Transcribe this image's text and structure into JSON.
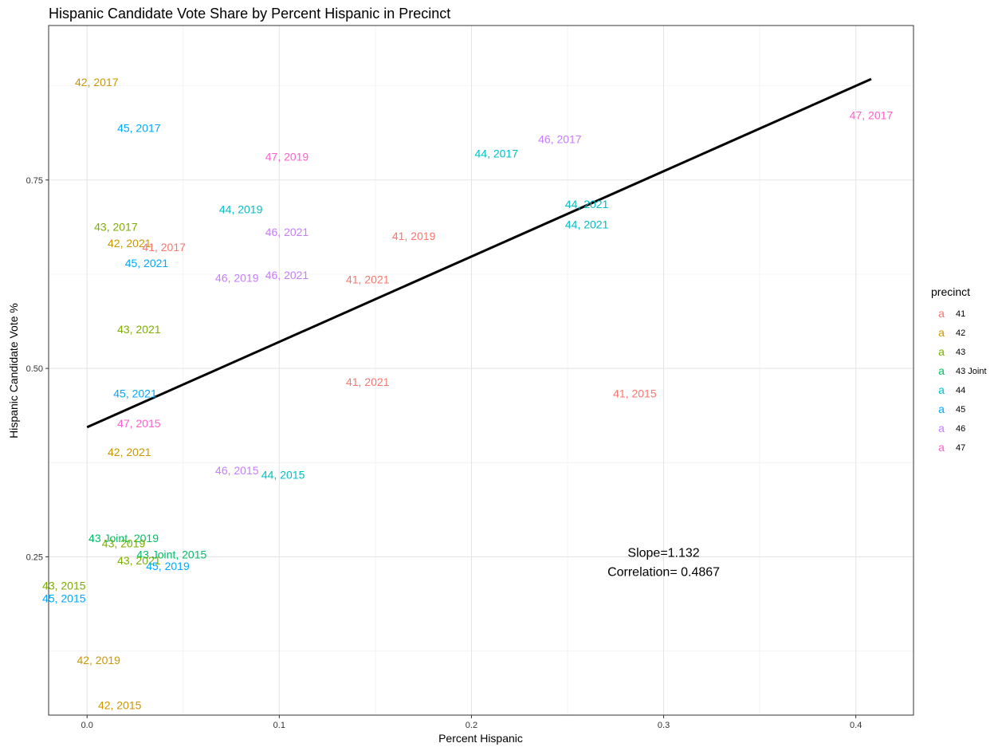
{
  "chart_data": {
    "type": "scatter",
    "title": "Hispanic Candidate Vote Share by Percent Hispanic in Precinct",
    "xlabel": "Percent Hispanic",
    "ylabel": "Hispanic Candidate Vote %",
    "xlim": [
      -0.02,
      0.43
    ],
    "ylim": [
      0.04,
      0.955
    ],
    "x_ticks": [
      {
        "value": 0.0,
        "label": "0.0"
      },
      {
        "value": 0.1,
        "label": "0.1"
      },
      {
        "value": 0.2,
        "label": "0.2"
      },
      {
        "value": 0.3,
        "label": "0.3"
      },
      {
        "value": 0.4,
        "label": "0.4"
      }
    ],
    "y_ticks": [
      {
        "value": 0.25,
        "label": "0.25"
      },
      {
        "value": 0.5,
        "label": "0.50"
      },
      {
        "value": 0.75,
        "label": "0.75"
      }
    ],
    "grid": true,
    "legend": {
      "title": "precinct",
      "placement": "right",
      "key_glyph": "a",
      "entries": [
        {
          "name": "41",
          "color": "#F8766D"
        },
        {
          "name": "42",
          "color": "#CD9600"
        },
        {
          "name": "43",
          "color": "#7CAE00"
        },
        {
          "name": "43 Joint",
          "color": "#00BE67"
        },
        {
          "name": "44",
          "color": "#00BFC4"
        },
        {
          "name": "45",
          "color": "#00A9FF"
        },
        {
          "name": "46",
          "color": "#C77CFF"
        },
        {
          "name": "47",
          "color": "#FF61CC"
        }
      ]
    },
    "points": [
      {
        "x": 0.005,
        "y": 0.88,
        "label": "42, 2017",
        "precinct": "42"
      },
      {
        "x": 0.027,
        "y": 0.819,
        "label": "45, 2017",
        "precinct": "45"
      },
      {
        "x": 0.104,
        "y": 0.781,
        "label": "47, 2019",
        "precinct": "47"
      },
      {
        "x": 0.213,
        "y": 0.785,
        "label": "44, 2017",
        "precinct": "44"
      },
      {
        "x": 0.246,
        "y": 0.804,
        "label": "46, 2017",
        "precinct": "46"
      },
      {
        "x": 0.408,
        "y": 0.836,
        "label": "47, 2017",
        "precinct": "47"
      },
      {
        "x": 0.08,
        "y": 0.711,
        "label": "44, 2019",
        "precinct": "44"
      },
      {
        "x": 0.26,
        "y": 0.718,
        "label": "44, 2021",
        "precinct": "44"
      },
      {
        "x": 0.26,
        "y": 0.691,
        "label": "44, 2021",
        "precinct": "44"
      },
      {
        "x": 0.104,
        "y": 0.681,
        "label": "46, 2021",
        "precinct": "46"
      },
      {
        "x": 0.17,
        "y": 0.676,
        "label": "41, 2019",
        "precinct": "41"
      },
      {
        "x": 0.015,
        "y": 0.688,
        "label": "43, 2017",
        "precinct": "43"
      },
      {
        "x": 0.022,
        "y": 0.666,
        "label": "42, 2021",
        "precinct": "42"
      },
      {
        "x": 0.04,
        "y": 0.661,
        "label": "41, 2017",
        "precinct": "41"
      },
      {
        "x": 0.031,
        "y": 0.64,
        "label": "45, 2021",
        "precinct": "45"
      },
      {
        "x": 0.078,
        "y": 0.62,
        "label": "46, 2019",
        "precinct": "46"
      },
      {
        "x": 0.104,
        "y": 0.624,
        "label": "46, 2021",
        "precinct": "46"
      },
      {
        "x": 0.146,
        "y": 0.618,
        "label": "41, 2021",
        "precinct": "41"
      },
      {
        "x": 0.027,
        "y": 0.552,
        "label": "43, 2021",
        "precinct": "43"
      },
      {
        "x": 0.146,
        "y": 0.482,
        "label": "41, 2021",
        "precinct": "41"
      },
      {
        "x": 0.285,
        "y": 0.467,
        "label": "41, 2015",
        "precinct": "41"
      },
      {
        "x": 0.025,
        "y": 0.467,
        "label": "45, 2021",
        "precinct": "45"
      },
      {
        "x": 0.027,
        "y": 0.427,
        "label": "47, 2015",
        "precinct": "47"
      },
      {
        "x": 0.022,
        "y": 0.389,
        "label": "42, 2021",
        "precinct": "42"
      },
      {
        "x": 0.078,
        "y": 0.365,
        "label": "46, 2015",
        "precinct": "46"
      },
      {
        "x": 0.102,
        "y": 0.359,
        "label": "44, 2015",
        "precinct": "44"
      },
      {
        "x": 0.019,
        "y": 0.275,
        "label": "43 Joint, 2019",
        "precinct": "43 Joint"
      },
      {
        "x": 0.019,
        "y": 0.268,
        "label": "43, 2019",
        "precinct": "43"
      },
      {
        "x": 0.044,
        "y": 0.253,
        "label": "43 Joint, 2015",
        "precinct": "43 Joint"
      },
      {
        "x": 0.027,
        "y": 0.245,
        "label": "43, 2021",
        "precinct": "43"
      },
      {
        "x": 0.042,
        "y": 0.238,
        "label": "45, 2019",
        "precinct": "45"
      },
      {
        "x": -0.012,
        "y": 0.212,
        "label": "43, 2015",
        "precinct": "43"
      },
      {
        "x": -0.012,
        "y": 0.195,
        "label": "45, 2015",
        "precinct": "45"
      },
      {
        "x": 0.006,
        "y": 0.113,
        "label": "42, 2019",
        "precinct": "42"
      },
      {
        "x": 0.017,
        "y": 0.053,
        "label": "42, 2015",
        "precinct": "42"
      }
    ],
    "fit_line": {
      "x": [
        0.0,
        0.408
      ],
      "y": [
        0.422,
        0.884
      ],
      "color": "#000000"
    },
    "annotations": {
      "slope": "Slope=1.132",
      "correlation": "Correlation= 0.4867",
      "x": 0.3,
      "y_slope": 0.255,
      "y_correlation": 0.23
    }
  }
}
